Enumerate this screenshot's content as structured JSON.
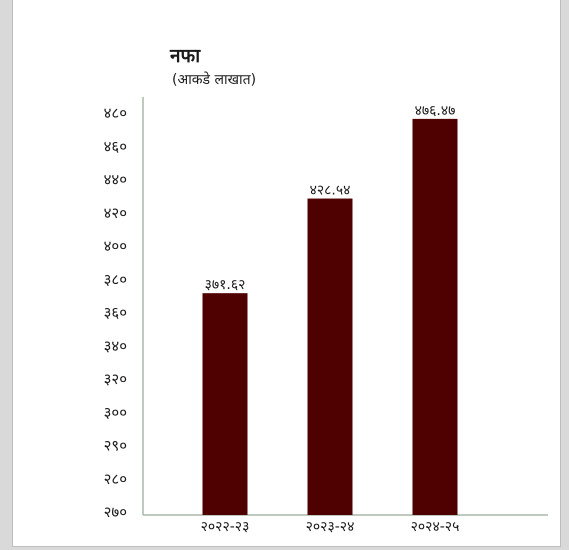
{
  "chart_data": {
    "type": "bar",
    "title": "नफा",
    "subtitle": "(आकडे लाखात)",
    "categories": [
      "२०२२-२३",
      "२०२३-२४",
      "२०२४-२५"
    ],
    "values": [
      371.62,
      428.54,
      476.47
    ],
    "data_labels": [
      "३७१.६२",
      "४२८.५४",
      "४७६.४७"
    ],
    "yticks": [
      270,
      280,
      290,
      300,
      320,
      340,
      360,
      380,
      400,
      420,
      440,
      460,
      480
    ],
    "ytick_labels": [
      "२७०",
      "२८०",
      "२९०",
      "३००",
      "३२०",
      "३४०",
      "३६०",
      "३८०",
      "४००",
      "४२०",
      "४४०",
      "४६०",
      "४८०"
    ],
    "ylim": [
      270,
      480
    ],
    "xlabel": "",
    "ylabel": "",
    "grid": false,
    "bar_color": "#4f0000"
  }
}
